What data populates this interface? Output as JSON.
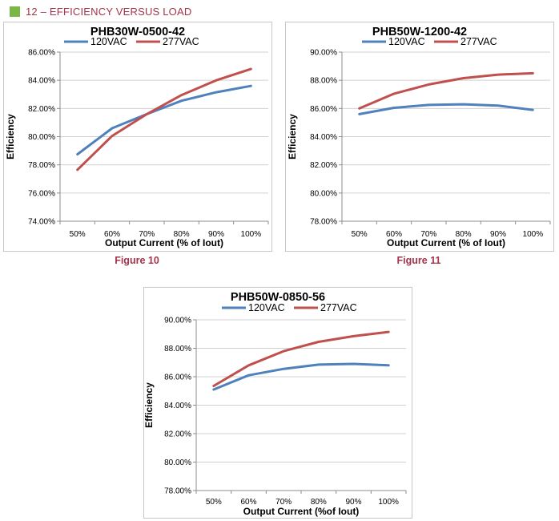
{
  "header": {
    "title": "12 – EFFICIENCY VERSUS LOAD",
    "marker_color": "#7ab648",
    "accent_color": "#a3344b"
  },
  "figures": [
    {
      "caption": "Figure 10"
    },
    {
      "caption": "Figure 11"
    }
  ],
  "chart_data": [
    {
      "type": "line",
      "title": "PHB30W-0500-42",
      "xlabel": "Output Current (% of Iout)",
      "ylabel": "Efficiency",
      "categories": [
        "50%",
        "60%",
        "70%",
        "80%",
        "90%",
        "100%"
      ],
      "ylim": [
        74,
        86
      ],
      "ytick_step": 2,
      "ytick_labels": [
        "74.00%",
        "76.00%",
        "78.00%",
        "80.00%",
        "82.00%",
        "84.00%",
        "86.00%"
      ],
      "grid": true,
      "legend": "top",
      "series": [
        {
          "name": "120VAC",
          "color": "#4f81bd",
          "values": [
            78.75,
            80.6,
            81.6,
            82.55,
            83.15,
            83.6
          ]
        },
        {
          "name": "277VAC",
          "color": "#c0504d",
          "values": [
            77.65,
            80.05,
            81.6,
            82.95,
            84.0,
            84.8
          ]
        }
      ]
    },
    {
      "type": "line",
      "title": "PHB50W-1200-42",
      "xlabel": "Output Current (% of Iout)",
      "ylabel": "Efficiency",
      "categories": [
        "50%",
        "60%",
        "70%",
        "80%",
        "90%",
        "100%"
      ],
      "ylim": [
        78,
        90
      ],
      "ytick_step": 2,
      "ytick_labels": [
        "78.00%",
        "80.00%",
        "82.00%",
        "84.00%",
        "86.00%",
        "88.00%",
        "90.00%"
      ],
      "grid": true,
      "legend": "top",
      "series": [
        {
          "name": "120VAC",
          "color": "#4f81bd",
          "values": [
            85.6,
            86.05,
            86.25,
            86.3,
            86.2,
            85.9
          ]
        },
        {
          "name": "277VAC",
          "color": "#c0504d",
          "values": [
            86.0,
            87.05,
            87.7,
            88.15,
            88.4,
            88.5
          ]
        }
      ]
    },
    {
      "type": "line",
      "title": "PHB50W-0850-56",
      "xlabel": "Output Current (%of Iout)",
      "ylabel": "Efficiency",
      "categories": [
        "50%",
        "60%",
        "70%",
        "80%",
        "90%",
        "100%"
      ],
      "ylim": [
        78,
        90
      ],
      "ytick_step": 2,
      "ytick_labels": [
        "78.00%",
        "80.00%",
        "82.00%",
        "84.00%",
        "86.00%",
        "88.00%",
        "90.00%"
      ],
      "grid": true,
      "legend": "top",
      "series": [
        {
          "name": "120VAC",
          "color": "#4f81bd",
          "values": [
            85.1,
            86.1,
            86.55,
            86.85,
            86.9,
            86.8
          ]
        },
        {
          "name": "277VAC",
          "color": "#c0504d",
          "values": [
            85.35,
            86.8,
            87.8,
            88.45,
            88.85,
            89.15
          ]
        }
      ]
    }
  ]
}
